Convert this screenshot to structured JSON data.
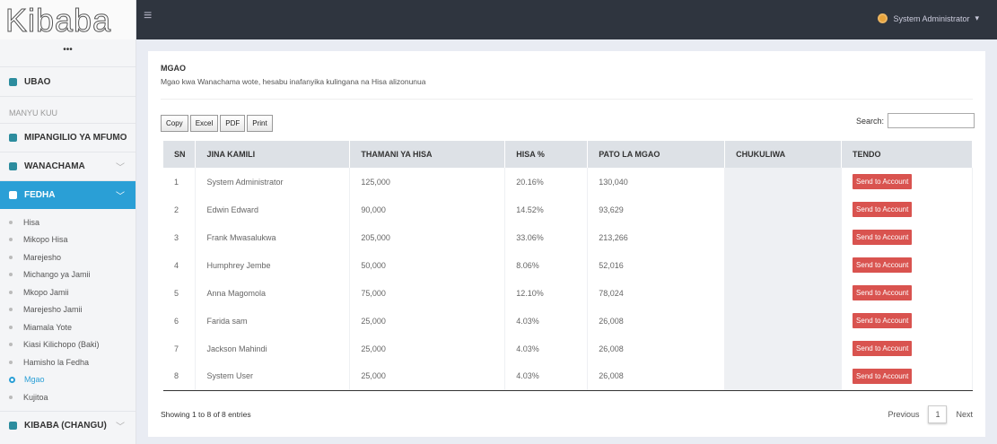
{
  "sidebar": {
    "brand": "Kibaba",
    "dots": "•••",
    "home": "UBAO",
    "section": "MANYU KUU",
    "menus": [
      "MIPANGILIO YA MFUMO",
      "WANACHAMA",
      "FEDHA"
    ],
    "submenu": [
      "Hisa",
      "Mikopo Hisa",
      "Marejesho",
      "Michango ya Jamii",
      "Mkopo Jamii",
      "Marejesho Jamii",
      "Miamala Yote",
      "Kiasi Kilichopo (Baki)",
      "Hamisho la Fedha",
      "Mgao",
      "Kujitoa"
    ],
    "last_menu": "KIBABA (CHANGU)"
  },
  "topbar": {
    "user": "System Administrator"
  },
  "panel": {
    "title": "MGAO",
    "subtitle": "Mgao kwa Wanachama wote, hesabu inafanyika kulingana na Hisa alizonunua",
    "buttons": [
      "Copy",
      "Excel",
      "PDF",
      "Print"
    ],
    "search": "Search:",
    "table": {
      "header": [
        "SN",
        "JINA KAMILI",
        "THAMANI YA HISA",
        "HISA %",
        "PATO LA MGAO",
        "CHUKULIWA",
        "TENDO"
      ],
      "rows": [
        [
          "1",
          "System Administrator",
          "125,000",
          "20.16%",
          "130,040",
          "",
          "Send to Account"
        ],
        [
          "2",
          "Edwin Edward",
          "90,000",
          "14.52%",
          "93,629",
          "",
          "Send to Account"
        ],
        [
          "3",
          "Frank Mwasalukwa",
          "205,000",
          "33.06%",
          "213,266",
          "",
          "Send to Account"
        ],
        [
          "4",
          "Humphrey Jembe",
          "50,000",
          "8.06%",
          "52,016",
          "",
          "Send to Account"
        ],
        [
          "5",
          "Anna Magomola",
          "75,000",
          "12.10%",
          "78,024",
          "",
          "Send to Account"
        ],
        [
          "6",
          "Farida sam",
          "25,000",
          "4.03%",
          "26,008",
          "",
          "Send to Account"
        ],
        [
          "7",
          "Jackson Mahindi",
          "25,000",
          "4.03%",
          "26,008",
          "",
          "Send to Account"
        ],
        [
          "8",
          "System User",
          "25,000",
          "4.03%",
          "26,008",
          "",
          "Send to Account"
        ]
      ]
    },
    "info": "Showing 1 to 8 of 8 entries",
    "pager": [
      "Previous",
      "1",
      "Next"
    ]
  }
}
